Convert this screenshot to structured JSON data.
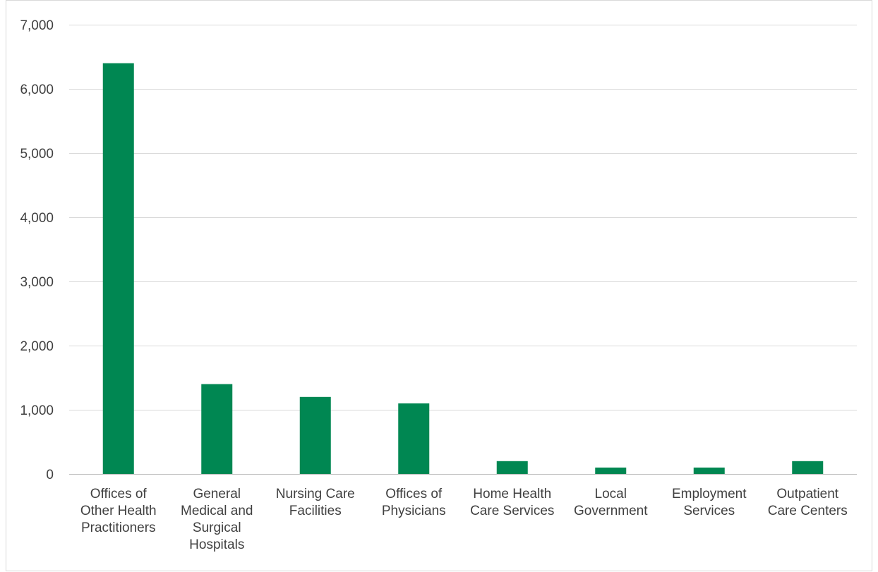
{
  "chart_data": {
    "type": "bar",
    "title": "",
    "xlabel": "",
    "ylabel": "",
    "categories": [
      [
        "Offices of",
        "Other Health",
        "Practitioners"
      ],
      [
        "General",
        "Medical and",
        "Surgical",
        "Hospitals"
      ],
      [
        "Nursing Care",
        "Facilities"
      ],
      [
        "Offices of",
        "Physicians"
      ],
      [
        "Home Health",
        "Care Services"
      ],
      [
        "Local",
        "Government"
      ],
      [
        "Employment",
        "Services"
      ],
      [
        "Outpatient",
        "Care Centers"
      ]
    ],
    "values": [
      6400,
      1400,
      1200,
      1100,
      200,
      100,
      100,
      200
    ],
    "ylim": [
      0,
      7000
    ],
    "yticks": [
      0,
      1000,
      2000,
      3000,
      4000,
      5000,
      6000,
      7000
    ],
    "ytick_labels": [
      "0",
      "1,000",
      "2,000",
      "3,000",
      "4,000",
      "5,000",
      "6,000",
      "7,000"
    ],
    "grid": true,
    "legend": "none",
    "colors": {
      "bar": "#008752",
      "grid": "#d9d9d9",
      "axis": "#bfbfbf",
      "text": "#404040"
    }
  }
}
